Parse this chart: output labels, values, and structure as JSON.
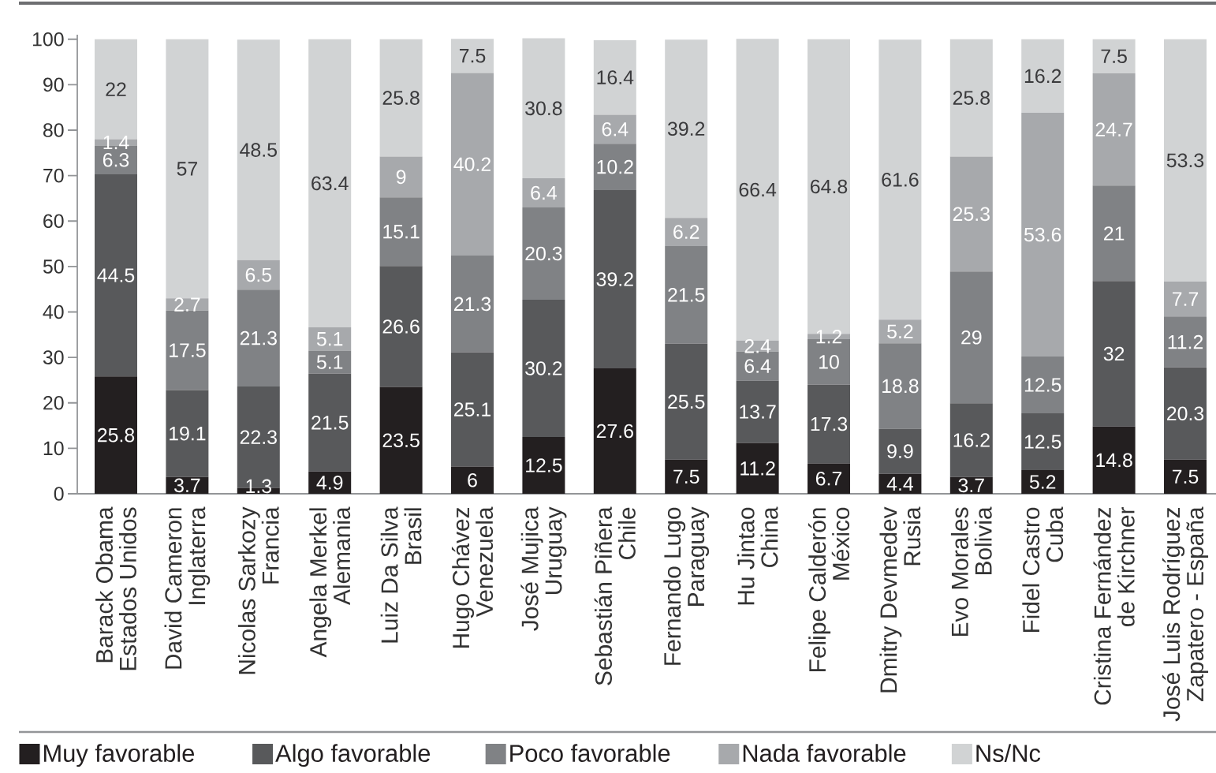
{
  "chart_data": {
    "type": "bar",
    "stacked": true,
    "data_labels": true,
    "legend": "bottom",
    "categories": [
      "Barack Obama\nEstados Unidos",
      "David Cameron\nInglaterra",
      "Nicolas Sarkozy\nFrancia",
      "Angela Merkel\nAlemania",
      "Luiz Da Silva\nBrasil",
      "Hugo Chávez\nVenezuela",
      "José Mujica\nUruguay",
      "Sebastián Piñera\nChile",
      "Fernando Lugo\nParaguay",
      "Hu Jintao\nChina",
      "Felipe Calderón\nMéxico",
      "Dmitry Devmedev\nRusia",
      "Evo Morales\nBolivia",
      "Fidel Castro\nCuba",
      "Cristina Fernández\nde Kirchner",
      "José Luis Rodríguez\nZapatero - España"
    ],
    "series": [
      {
        "name": "Muy favorable",
        "color": "#231f20",
        "values": [
          25.8,
          3.7,
          1.3,
          4.9,
          23.5,
          6,
          12.5,
          27.6,
          7.5,
          11.2,
          6.7,
          4.4,
          3.7,
          5.2,
          14.8,
          7.5
        ]
      },
      {
        "name": "Algo favorable",
        "color": "#58595b",
        "values": [
          44.5,
          19.1,
          22.3,
          21.5,
          26.6,
          25.1,
          30.2,
          39.2,
          25.5,
          13.7,
          17.3,
          9.9,
          16.2,
          12.5,
          32,
          20.3
        ]
      },
      {
        "name": "Poco favorable",
        "color": "#808285",
        "values": [
          6.3,
          17.5,
          21.3,
          5.1,
          15.1,
          21.3,
          20.3,
          10.2,
          21.5,
          6.4,
          10,
          18.8,
          29,
          12.5,
          21,
          11.2
        ]
      },
      {
        "name": "Nada favorable",
        "color": "#a7a9ac",
        "values": [
          1.4,
          2.7,
          6.5,
          5.1,
          9,
          40.2,
          6.4,
          6.4,
          6.2,
          2.4,
          1.2,
          5.2,
          25.3,
          53.6,
          24.7,
          7.7
        ]
      },
      {
        "name": "Ns/Nc",
        "color": "#d1d3d4",
        "values": [
          22,
          57,
          48.5,
          63.4,
          25.8,
          7.5,
          30.8,
          16.4,
          39.2,
          66.4,
          64.8,
          61.6,
          25.8,
          16.2,
          7.5,
          53.3
        ]
      }
    ],
    "ylim": [
      0,
      101
    ],
    "yticks": [
      0,
      10,
      20,
      30,
      40,
      50,
      60,
      70,
      80,
      90,
      100
    ]
  }
}
